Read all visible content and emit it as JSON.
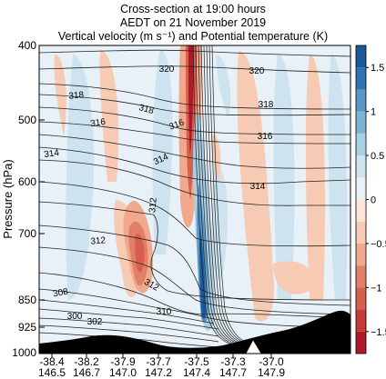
{
  "chart_data": {
    "type": "heatmap",
    "title_lines": [
      "Cross-section at 19:00 hours",
      "AEDT on 21 November 2019",
      "Vertical velocity (m s⁻¹) and Potential temperature (K)"
    ],
    "ylabel": "Pressure (hPa)",
    "y_ticks": [
      400,
      500,
      600,
      700,
      850,
      925,
      1000
    ],
    "ylim": [
      400,
      1000
    ],
    "x_ticks_lat": [
      "-38.4",
      "-38.2",
      "-37.9",
      "-37.7",
      "-37.5",
      "-37.3",
      "-37.0"
    ],
    "x_ticks_lon": [
      "146.5",
      "146.7",
      "147.0",
      "147.2",
      "147.4",
      "147.7",
      "147.9"
    ],
    "colorbar": {
      "ticks": [
        1.5,
        1,
        0.5,
        0,
        -0.5,
        -1,
        -1.5
      ],
      "tick_labels": [
        "1.5",
        "1",
        "0.5",
        "0",
        "−0.5",
        "−1",
        "−1.5"
      ],
      "range": [
        -1.75,
        1.75
      ],
      "levels": [
        -1.75,
        -1.5,
        -1.25,
        -1.0,
        -0.75,
        -0.5,
        -0.25,
        0,
        0.25,
        0.5,
        0.75,
        1.0,
        1.25,
        1.5,
        1.75
      ],
      "colors": [
        "#b2182b",
        "#c73a3a",
        "#d6604d",
        "#e27f68",
        "#f0a98c",
        "#f7cbb3",
        "#fbe5d8",
        "#e8f1f7",
        "#cde3f0",
        "#a8cfe4",
        "#7fb3d5",
        "#5896c6",
        "#2f74b0",
        "#1b5a9a"
      ]
    },
    "contour_labels": [
      "320",
      "320",
      "318",
      "318",
      "318",
      "316",
      "316",
      "316",
      "314",
      "314",
      "314",
      "312",
      "312",
      "312",
      "310",
      "308",
      "302",
      "300"
    ],
    "terrain_marker": "white-triangle"
  }
}
